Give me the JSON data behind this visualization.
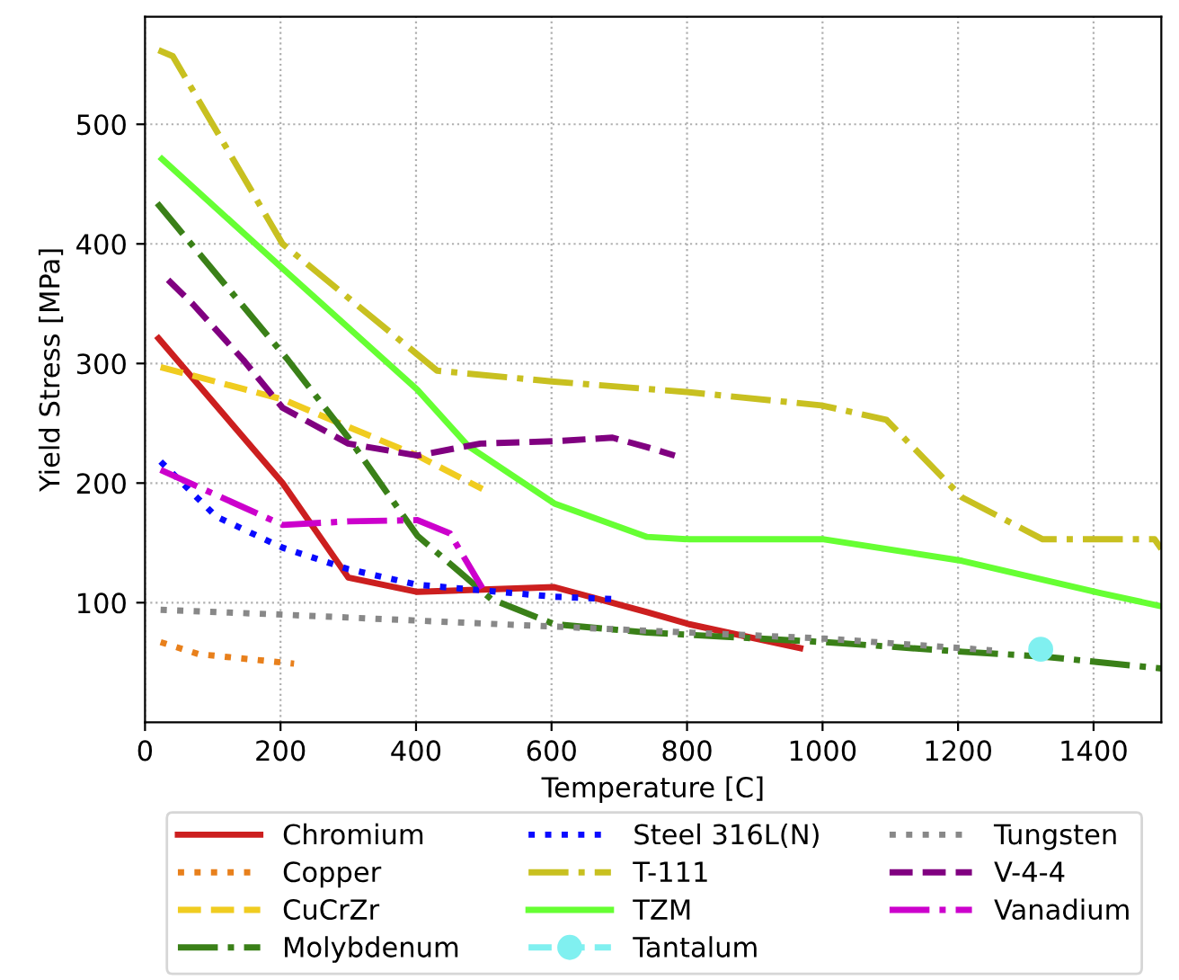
{
  "chart_data": {
    "type": "line",
    "xlabel": "Temperature [C]",
    "ylabel": "Yield Stress [MPa]",
    "xlim": [
      0,
      1500
    ],
    "xticks": [
      0,
      200,
      400,
      600,
      800,
      1000,
      1200,
      1400
    ],
    "ylim": [
      0,
      590
    ],
    "yticks": [
      100,
      200,
      300,
      400,
      500
    ],
    "grid": true,
    "legend": "bottom",
    "series": [
      {
        "name": "Chromium",
        "color": "#cc1f1f",
        "line_style": "solid",
        "x": [
          20,
          203,
          300,
          402,
          604,
          741,
          803,
          967
        ],
        "values": [
          321,
          200,
          121,
          109,
          113,
          92,
          82,
          62
        ]
      },
      {
        "name": "Copper",
        "color": "#e8801c",
        "line_style": "dotted",
        "x": [
          23,
          79,
          220
        ],
        "values": [
          67,
          57,
          49
        ]
      },
      {
        "name": "CuCrZr",
        "color": "#f0cc20",
        "line_style": "dashed",
        "x": [
          23,
          203,
          300,
          402,
          498
        ],
        "values": [
          297,
          270,
          247,
          223,
          195
        ]
      },
      {
        "name": "Molybdenum",
        "color": "#3a8018",
        "line_style": "dashdot",
        "x": [
          18,
          211,
          300,
          402,
          511,
          604,
          741,
          1004,
          1206,
          1325,
          1500
        ],
        "values": [
          434,
          303,
          238,
          156,
          103,
          82,
          75,
          67,
          59,
          55,
          45
        ]
      },
      {
        "name": "Steel 316L(N)",
        "color": "#0a0aff",
        "line_style": "dotted",
        "x": [
          23,
          105,
          203,
          300,
          402,
          604,
          690
        ],
        "values": [
          218,
          172,
          146,
          128,
          115,
          105,
          103
        ]
      },
      {
        "name": "T-111",
        "color": "#c8c020",
        "line_style": "dashdot",
        "x": [
          20,
          41,
          203,
          431,
          600,
          803,
          998,
          1094,
          1206,
          1325,
          1490,
          1500
        ],
        "values": [
          562,
          557,
          400,
          294,
          285,
          276,
          265,
          253,
          188,
          153,
          153,
          145
        ]
      },
      {
        "name": "TZM",
        "color": "#66ff33",
        "line_style": "solid",
        "x": [
          25,
          200,
          402,
          477,
          604,
          741,
          803,
          1002,
          1206,
          1410,
          1500
        ],
        "values": [
          471,
          381,
          278,
          231,
          183,
          155,
          153,
          153,
          135,
          108,
          97
        ]
      },
      {
        "name": "Tantalum",
        "color": "#80f0f0",
        "line_style": "dashed",
        "marker": "circle",
        "x": [
          1322
        ],
        "values": [
          61
        ]
      },
      {
        "name": "Tungsten",
        "color": "#888888",
        "line_style": "dotted",
        "x": [
          23,
          203,
          402,
          604,
          1002,
          1206,
          1250
        ],
        "values": [
          94,
          90,
          85,
          80,
          70,
          62,
          60
        ]
      },
      {
        "name": "V-4-4",
        "color": "#800080",
        "line_style": "dashed",
        "x": [
          34,
          70,
          145,
          203,
          300,
          402,
          495,
          604,
          690,
          741,
          782
        ],
        "values": [
          370,
          350,
          303,
          263,
          233,
          223,
          233,
          235,
          238,
          230,
          223
        ]
      },
      {
        "name": "Vanadium",
        "color": "#cc00cc",
        "line_style": "dashdot",
        "x": [
          23,
          203,
          300,
          402,
          450,
          498
        ],
        "values": [
          211,
          165,
          168,
          169,
          158,
          112
        ]
      }
    ]
  }
}
